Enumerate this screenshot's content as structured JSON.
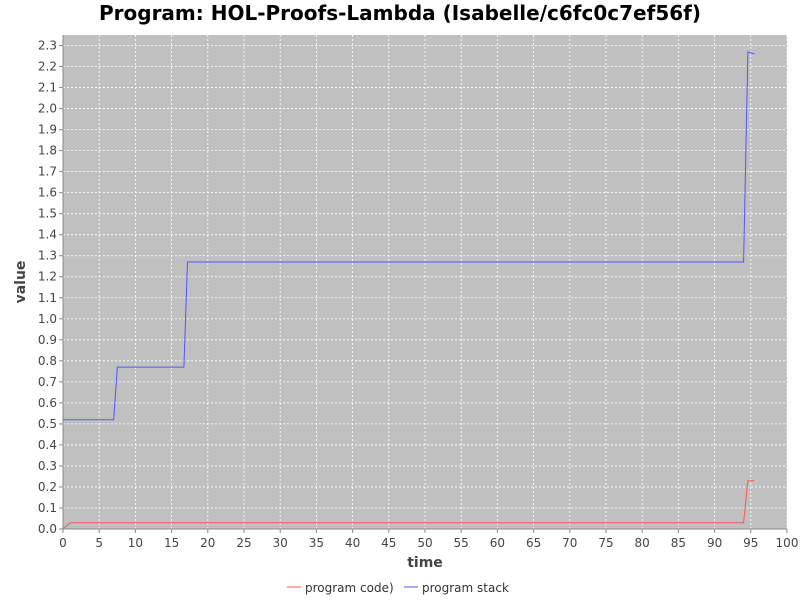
{
  "chart_data": {
    "type": "line",
    "title": "Program: HOL-Proofs-Lambda (Isabelle/c6fc0c7ef56f)",
    "xlabel": "time",
    "ylabel": "value",
    "xlim": [
      0,
      100
    ],
    "ylim": [
      0,
      2.35
    ],
    "x_ticks": [
      "0",
      "5",
      "10",
      "15",
      "20",
      "25",
      "30",
      "35",
      "40",
      "45",
      "50",
      "55",
      "60",
      "65",
      "70",
      "75",
      "80",
      "85",
      "90",
      "95",
      "100"
    ],
    "y_ticks": [
      "0.0",
      "0.1",
      "0.2",
      "0.3",
      "0.4",
      "0.5",
      "0.6",
      "0.7",
      "0.8",
      "0.9",
      "1.0",
      "1.1",
      "1.2",
      "1.3",
      "1.4",
      "1.5",
      "1.6",
      "1.7",
      "1.8",
      "1.9",
      "2.0",
      "2.1",
      "2.2",
      "2.3"
    ],
    "grid": true,
    "legend_position": "bottom",
    "series": [
      {
        "name": "program code)",
        "color": "#ff5555",
        "points": [
          [
            0,
            0.0
          ],
          [
            1,
            0.03
          ],
          [
            94,
            0.03
          ],
          [
            94.6,
            0.23
          ],
          [
            95.5,
            0.23
          ]
        ]
      },
      {
        "name": "program stack",
        "color": "#5555ff",
        "points": [
          [
            0,
            0.52
          ],
          [
            7,
            0.52
          ],
          [
            7.5,
            0.77
          ],
          [
            16.7,
            0.77
          ],
          [
            17.2,
            1.27
          ],
          [
            94,
            1.27
          ],
          [
            94.6,
            2.27
          ],
          [
            95.5,
            2.26
          ]
        ]
      }
    ]
  }
}
